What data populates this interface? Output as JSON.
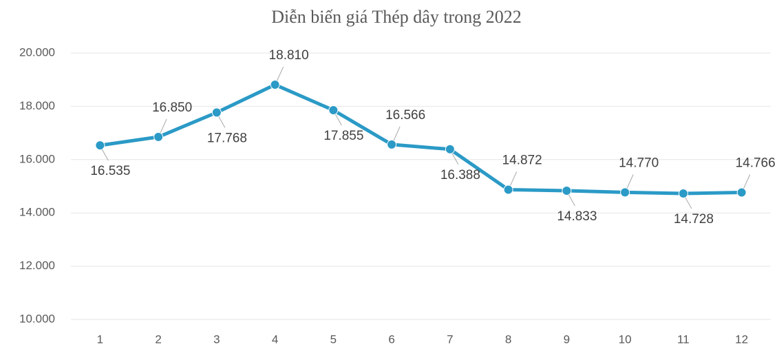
{
  "chart_data": {
    "type": "line",
    "title": "Diễn biến giá Thép dây trong 2022",
    "categories": [
      "1",
      "2",
      "3",
      "4",
      "5",
      "6",
      "7",
      "8",
      "9",
      "10",
      "11",
      "12"
    ],
    "series": [
      {
        "name": "Thép dây",
        "color": "#2b9ac6",
        "values": [
          16535,
          16850,
          17768,
          18810,
          17855,
          16566,
          16388,
          14872,
          14833,
          14770,
          14728,
          14766
        ],
        "value_labels": [
          "16.535",
          "16.850",
          "17.768",
          "18.810",
          "17.855",
          "16.566",
          "16.388",
          "14.872",
          "14.833",
          "14.770",
          "14.728",
          "14.766"
        ]
      }
    ],
    "ylim": [
      10000,
      20000
    ],
    "yticks": [
      {
        "value": 10000,
        "label": "10.000"
      },
      {
        "value": 12000,
        "label": "12.000"
      },
      {
        "value": 14000,
        "label": "14.000"
      },
      {
        "value": 16000,
        "label": "16.000"
      },
      {
        "value": 18000,
        "label": "18.000"
      },
      {
        "value": 20000,
        "label": "20.000"
      }
    ],
    "grid": true
  }
}
